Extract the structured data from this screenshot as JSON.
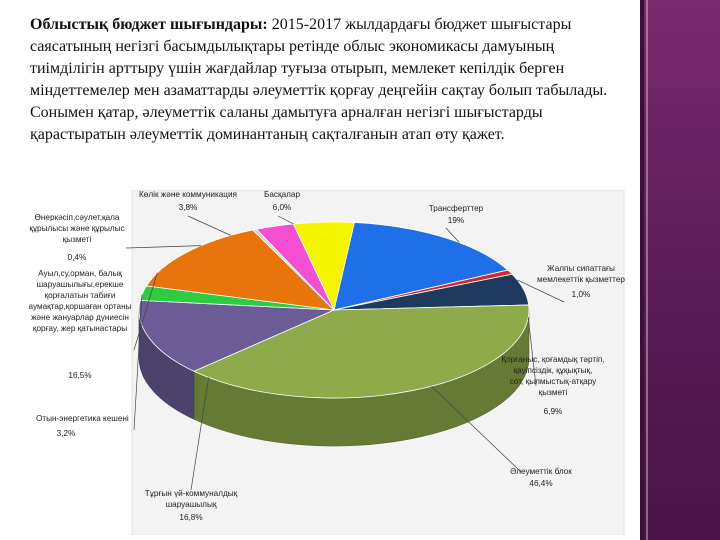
{
  "text": {
    "lead": "Облыстық бюджет шығындары:",
    "body": "2015-2017 жылдардағы бюджет шығыстары саясатының негізгі басымдылықтары ретінде облыс экономикасы дамуының тиімділігін арттыру үшін жағдайлар туғыза отырып, мемлекет кепілдік берген міндеттемелер мен азаматтарды әлеуметтік қорғау деңгейін сақтау болып табылады. Сонымен қатар, әлеуметтік саланы дамытуға арналған негізгі шығыстарды қарастыратын әлеуметтік доминантаның сақталғанын атап өту қажет."
  },
  "chart_data": {
    "type": "pie",
    "slices": [
      {
        "label": "Трансферттер",
        "value": 19,
        "display": "19%",
        "color": "#1e6fe8"
      },
      {
        "label": "Жалпы сипаттағы мемлекеттік қызметтер",
        "value": 1.0,
        "display": "1,0%",
        "color": "#d9262a"
      },
      {
        "label": "Қорғаныс, қоғамдық тәртіп, қауіпсіздік, құқықтық, сот, қылмыстық-атқару қызметі",
        "value": 6.9,
        "display": "6,9%",
        "color": "#1f3a5f"
      },
      {
        "label": "Әлеуметтік блок",
        "value": 46.4,
        "display": "46,4%",
        "color": "#8faa4a"
      },
      {
        "label": "Тұрғын үй-коммуналдық шаруашылық",
        "value": 16.8,
        "display": "16,8%",
        "color": "#6b5b96"
      },
      {
        "label": "Отын-энергетика кешені",
        "value": 3.2,
        "display": "3,2%",
        "color": "#2ecc40"
      },
      {
        "label": "Ауыл,су,орман, балық шаруашылығы,ерекше қорғалатын табиғи аумақтар,қоршаған ортаны және жануарлар дүниесін қорғау, жер қатынастары",
        "value": 16.5,
        "display": "16,5%",
        "color": "#e8740c"
      },
      {
        "label": "Өнеркәсіп,сәулет,қала құрылысы және құрылыс қызметі",
        "value": 0.4,
        "display": "0,4%",
        "color": "#c9d4e0"
      },
      {
        "label": "Көлік және коммуникация",
        "value": 3.8,
        "display": "3,8%",
        "color": "#f24fd2"
      },
      {
        "label": "Басқалар",
        "value": 6.0,
        "display": "6,0%",
        "color": "#f5f500"
      }
    ]
  }
}
